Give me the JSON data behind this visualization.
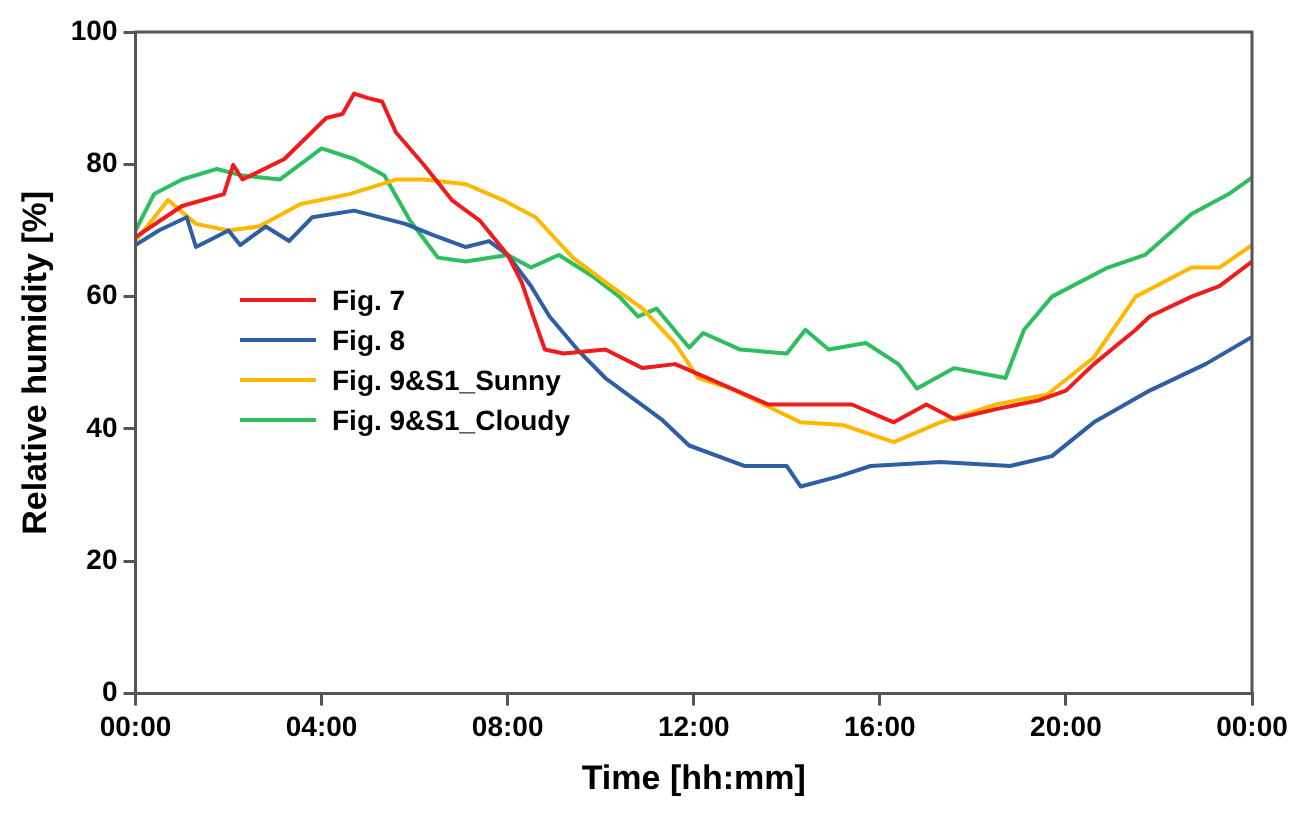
{
  "chart_data": {
    "type": "line",
    "xlabel": "Time [hh:mm]",
    "ylabel": "Relative humidity [%]",
    "xlim": [
      0,
      24
    ],
    "xticks": [
      {
        "value": 0,
        "label": "00:00"
      },
      {
        "value": 4,
        "label": "04:00"
      },
      {
        "value": 8,
        "label": "08:00"
      },
      {
        "value": 12,
        "label": "12:00"
      },
      {
        "value": 16,
        "label": "16:00"
      },
      {
        "value": 20,
        "label": "20:00"
      },
      {
        "value": 24,
        "label": "00:00"
      }
    ],
    "ylim": [
      0,
      100
    ],
    "yticks": [
      0,
      20,
      40,
      60,
      80,
      100
    ],
    "grid": false,
    "legend": "left",
    "marker": "none",
    "line_style": "solid",
    "series": [
      {
        "name": "Fig. 7",
        "color": "#ee1c1c",
        "x": [
          0,
          1,
          1.9,
          2.1,
          2.3,
          3.2,
          4.1,
          4.45,
          4.7,
          5.0,
          5.3,
          5.6,
          6.2,
          6.8,
          7.4,
          8.0,
          8.3,
          8.6,
          8.8,
          9.2,
          10.1,
          10.9,
          11.6,
          12.1,
          13.6,
          14.3,
          15.4,
          16.3,
          17.0,
          17.6,
          18.5,
          19.4,
          20.0,
          20.6,
          21.5,
          21.8,
          22.7,
          23.3,
          24
        ],
        "values": [
          69,
          73.7,
          75.5,
          79.9,
          77.7,
          80.8,
          87,
          87.6,
          90.7,
          90,
          89.5,
          84.8,
          79.9,
          74.6,
          71.5,
          66.3,
          62.2,
          56,
          52,
          51.4,
          52,
          49.2,
          49.8,
          48.3,
          43.7,
          43.7,
          43.7,
          41,
          43.7,
          41.5,
          43,
          44.3,
          45.8,
          49.8,
          55,
          57,
          60,
          61.6,
          65.3
        ]
      },
      {
        "name": "Fig. 8",
        "color": "#2e5fa3",
        "x": [
          0,
          0.5,
          1.1,
          1.3,
          2.0,
          2.25,
          2.8,
          3.3,
          3.8,
          4.7,
          5.8,
          6.4,
          7.1,
          7.6,
          8.0,
          8.5,
          8.9,
          9.5,
          10.1,
          10.7,
          11.3,
          11.9,
          13.1,
          14.0,
          14.3,
          15.1,
          15.8,
          17.3,
          18.8,
          19.7,
          20.6,
          21.8,
          23.0,
          24
        ],
        "values": [
          67.8,
          70,
          72,
          67.5,
          70,
          67.8,
          70.6,
          68.4,
          72,
          73,
          71,
          69.3,
          67.5,
          68.4,
          66.3,
          61.6,
          57,
          52,
          47.7,
          44.6,
          41.5,
          37.5,
          34.4,
          34.4,
          31.3,
          32.8,
          34.4,
          35,
          34.4,
          35.9,
          41,
          45.8,
          49.8,
          53.9
        ]
      },
      {
        "name": "Fig. 9&S1_Sunny",
        "color": "#ffb800",
        "x": [
          0,
          0.7,
          1.3,
          2.0,
          2.65,
          3.55,
          4.6,
          5.6,
          6.2,
          7.1,
          7.9,
          8.6,
          9.4,
          10.1,
          10.9,
          11.6,
          12.1,
          12.8,
          14.3,
          15.2,
          16.3,
          17.3,
          18.5,
          19.6,
          20.6,
          21.5,
          22.7,
          23.3,
          24
        ],
        "values": [
          68.4,
          74.6,
          71,
          70,
          70.6,
          74,
          75.5,
          77.7,
          77.7,
          77,
          74.6,
          72,
          65.9,
          62.2,
          58.2,
          52.9,
          47.7,
          46.1,
          41,
          40.6,
          38,
          41,
          43.7,
          45.2,
          50.8,
          60,
          64.4,
          64.4,
          67.8
        ]
      },
      {
        "name": "Fig. 9&S1_Cloudy",
        "color": "#2dbf5e",
        "x": [
          0,
          0.4,
          1.0,
          1.75,
          2.3,
          3.1,
          4.0,
          4.7,
          5.35,
          5.9,
          6.5,
          7.1,
          8.0,
          8.5,
          9.1,
          9.8,
          10.4,
          10.8,
          11.2,
          11.9,
          12.2,
          13.0,
          14.0,
          14.4,
          14.9,
          15.7,
          16.4,
          16.8,
          17.6,
          18.7,
          19.1,
          19.7,
          20.9,
          21.7,
          22.7,
          23.5,
          24
        ],
        "values": [
          70,
          75.5,
          77.7,
          79.3,
          78.3,
          77.7,
          82.4,
          80.8,
          78.3,
          71.5,
          65.9,
          65.3,
          66.3,
          64.4,
          66.3,
          63.2,
          60,
          57,
          58.2,
          52.3,
          54.5,
          52,
          51.4,
          55,
          52,
          53,
          49.8,
          46.1,
          49.2,
          47.7,
          55,
          60,
          64.4,
          66.3,
          72.5,
          75.5,
          78
        ]
      }
    ]
  }
}
